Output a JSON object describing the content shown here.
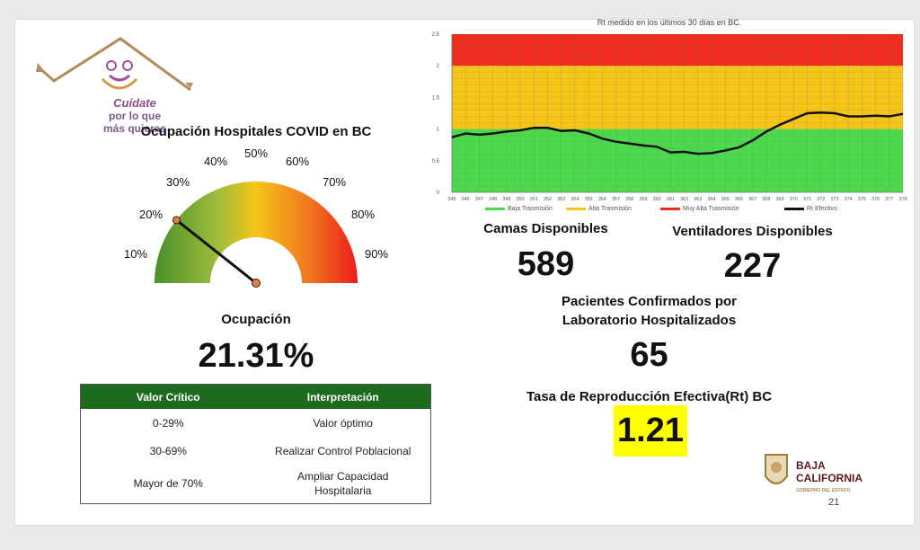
{
  "logo": {
    "line1": "Cuídate",
    "line2": "por lo que",
    "line3": "más quieras"
  },
  "gauge": {
    "title": "Ocupación Hospitales COVID en BC",
    "ticks": [
      "10%",
      "20%",
      "30%",
      "40%",
      "50%",
      "60%",
      "70%",
      "80%",
      "90%"
    ],
    "occupancy_label": "Ocupación",
    "occupancy_value": "21.31%",
    "needle_fraction": 0.2131
  },
  "criteria_table": {
    "headers": [
      "Valor Crítico",
      "Interpretación"
    ],
    "rows": [
      [
        "0-29%",
        "Valor óptimo"
      ],
      [
        "30-69%",
        "Realizar Control Poblacional"
      ],
      [
        "Mayor de 70%",
        "Ampliar Capacidad Hospitalaria"
      ]
    ]
  },
  "stats": {
    "beds_label": "Camas Disponibles",
    "beds_value": "589",
    "vents_label": "Ventiladores Disponibles",
    "vents_value": "227",
    "patients_label_1": "Pacientes Confirmados por",
    "patients_label_2": "Laboratorio Hospitalizados",
    "patients_value": "65",
    "rt_label": "Tasa de Reproducción Efectiva(Rt) BC",
    "rt_value": "1.21",
    "rt_highlight": "#ffff00"
  },
  "branding": {
    "state_line1": "BAJA",
    "state_line2": "CALIFORNIA",
    "state_line3": "GOBIERNO DEL ESTADO",
    "page_number": "21"
  },
  "colors": {
    "green": "#4cd94c",
    "yellow": "#f5c518",
    "red": "#ee2b1e",
    "table_header": "#1e6b1e"
  },
  "chart_data": {
    "type": "line",
    "title": "Rt medido en los últimos 30 días en BC.",
    "ylim": [
      0,
      2.5
    ],
    "yticks": [
      "0",
      "0.5",
      "1",
      "1.5",
      "2",
      "2.5"
    ],
    "bands": [
      {
        "from": 0,
        "to": 1,
        "color": "#4cd94c",
        "label": "Baja Trasmisión"
      },
      {
        "from": 1,
        "to": 2,
        "color": "#f5c518",
        "label": "Alta Trasmisión"
      },
      {
        "from": 2,
        "to": 2.5,
        "color": "#ee2b1e",
        "label": "Muy Alta Trasmisión"
      }
    ],
    "x": [
      345,
      346,
      347,
      348,
      349,
      350,
      351,
      352,
      353,
      354,
      355,
      356,
      357,
      358,
      359,
      360,
      361,
      362,
      363,
      364,
      365,
      366,
      367,
      368,
      369,
      370,
      371,
      372,
      373,
      374,
      375,
      376,
      377,
      378
    ],
    "series": [
      {
        "name": "Rt Efectivo",
        "values": [
          0.87,
          0.93,
          0.91,
          0.93,
          0.96,
          0.98,
          1.02,
          1.02,
          0.97,
          0.98,
          0.93,
          0.85,
          0.8,
          0.77,
          0.74,
          0.72,
          0.63,
          0.64,
          0.61,
          0.62,
          0.66,
          0.71,
          0.82,
          0.96,
          1.07,
          1.16,
          1.25,
          1.26,
          1.25,
          1.2,
          1.2,
          1.21,
          1.2,
          1.24
        ]
      }
    ]
  }
}
